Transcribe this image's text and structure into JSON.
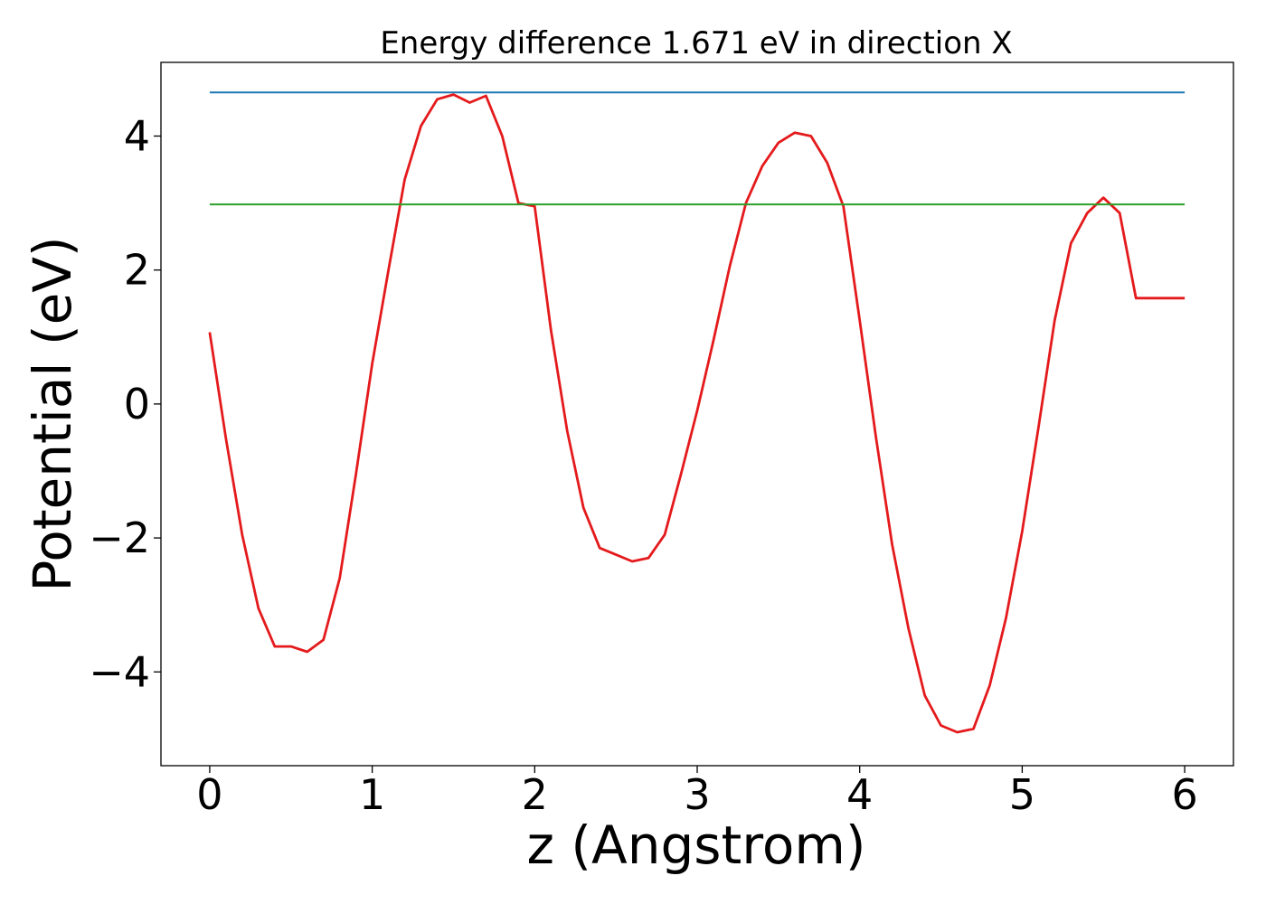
{
  "chart_data": {
    "type": "line",
    "title": "Energy difference 1.671 eV in direction X",
    "xlabel": "z (Angstrom)",
    "ylabel": "Potential (eV)",
    "xlim": [
      -0.3,
      6.3
    ],
    "ylim": [
      -5.4,
      5.1
    ],
    "xticks": [
      0,
      1,
      2,
      3,
      4,
      5,
      6
    ],
    "xtick_labels": [
      "0",
      "1",
      "2",
      "3",
      "4",
      "5",
      "6"
    ],
    "yticks": [
      -4,
      -2,
      0,
      2,
      4
    ],
    "ytick_labels": [
      "−4",
      "−2",
      "0",
      "2",
      "4"
    ],
    "grid": false,
    "legend": "none",
    "series": [
      {
        "color": "#e41a1c",
        "x": [
          0.0,
          0.1,
          0.2,
          0.3,
          0.4,
          0.5,
          0.6,
          0.7,
          0.8,
          0.9,
          1.0,
          1.1,
          1.2,
          1.3,
          1.4,
          1.5,
          1.6,
          1.7,
          1.8,
          1.9,
          2.0,
          2.1,
          2.2,
          2.3,
          2.4,
          2.5,
          2.6,
          2.7,
          2.8,
          2.9,
          3.0,
          3.1,
          3.2,
          3.3,
          3.4,
          3.5,
          3.6,
          3.7,
          3.8,
          3.9,
          4.0,
          4.1,
          4.2,
          4.3,
          4.4,
          4.5,
          4.6,
          4.7,
          4.8,
          4.9,
          5.0,
          5.1,
          5.2,
          5.3,
          5.4,
          5.5,
          5.6,
          5.7,
          5.8,
          5.9,
          6.0
        ],
        "y": [
          1.07,
          -0.52,
          -1.95,
          -3.05,
          -3.62,
          -3.62,
          -3.7,
          -3.52,
          -2.6,
          -1.05,
          0.6,
          2.0,
          3.35,
          4.15,
          4.55,
          4.62,
          4.5,
          4.6,
          4.0,
          3.0,
          2.95,
          1.1,
          -0.4,
          -1.55,
          -2.15,
          -2.25,
          -2.35,
          -2.3,
          -1.95,
          -1.05,
          -0.1,
          0.95,
          2.05,
          3.0,
          3.55,
          3.9,
          4.05,
          4.0,
          3.6,
          2.95,
          1.25,
          -0.5,
          -2.1,
          -3.35,
          -4.35,
          -4.8,
          -4.9,
          -4.85,
          -4.2,
          -3.2,
          -1.9,
          -0.35,
          1.25,
          2.4,
          2.85,
          3.08,
          2.85,
          1.58,
          1.58,
          1.58,
          1.58
        ]
      },
      {
        "color": "#1f77b4",
        "x": [
          0,
          6
        ],
        "y": [
          4.65,
          4.65
        ]
      },
      {
        "color": "#2ca02c",
        "x": [
          0,
          6
        ],
        "y": [
          2.98,
          2.98
        ]
      }
    ]
  }
}
